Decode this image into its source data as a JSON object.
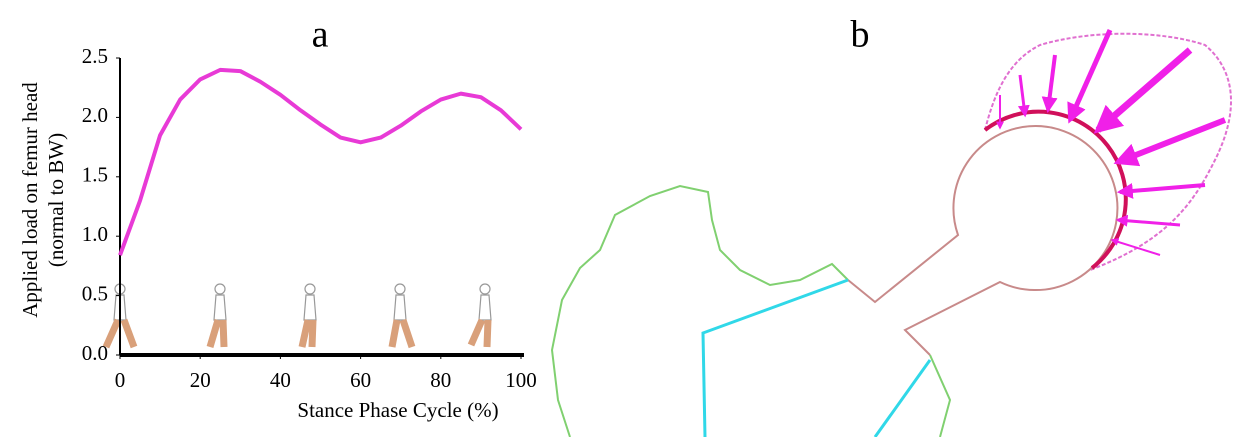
{
  "chart_data": {
    "type": "line",
    "title": "a",
    "x": [
      0,
      5,
      10,
      15,
      20,
      25,
      30,
      35,
      40,
      45,
      50,
      55,
      60,
      65,
      70,
      75,
      80,
      85,
      90,
      95,
      100
    ],
    "series": [
      {
        "color": "#e83ad6",
        "values": [
          0.84,
          1.3,
          1.85,
          2.15,
          2.32,
          2.4,
          2.39,
          2.3,
          2.19,
          2.06,
          1.94,
          1.83,
          1.79,
          1.83,
          1.93,
          2.05,
          2.15,
          2.2,
          2.17,
          2.06,
          1.9
        ]
      }
    ],
    "xlim": [
      0,
      100
    ],
    "ylim": [
      0,
      2.5
    ],
    "xticks": [
      0,
      20,
      40,
      60,
      80,
      100
    ],
    "yticks": [
      {
        "value": 0,
        "label": "0.0"
      },
      0.5,
      {
        "value": 1,
        "label": "1.0"
      },
      1.5,
      {
        "value": 2,
        "label": "2.0"
      },
      2.5
    ],
    "xlabel": "Stance Phase Cycle (%)",
    "ylabel": [
      "Applied load on femur head",
      "(normal to BW)"
    ]
  },
  "diagram": {
    "title": "b"
  }
}
